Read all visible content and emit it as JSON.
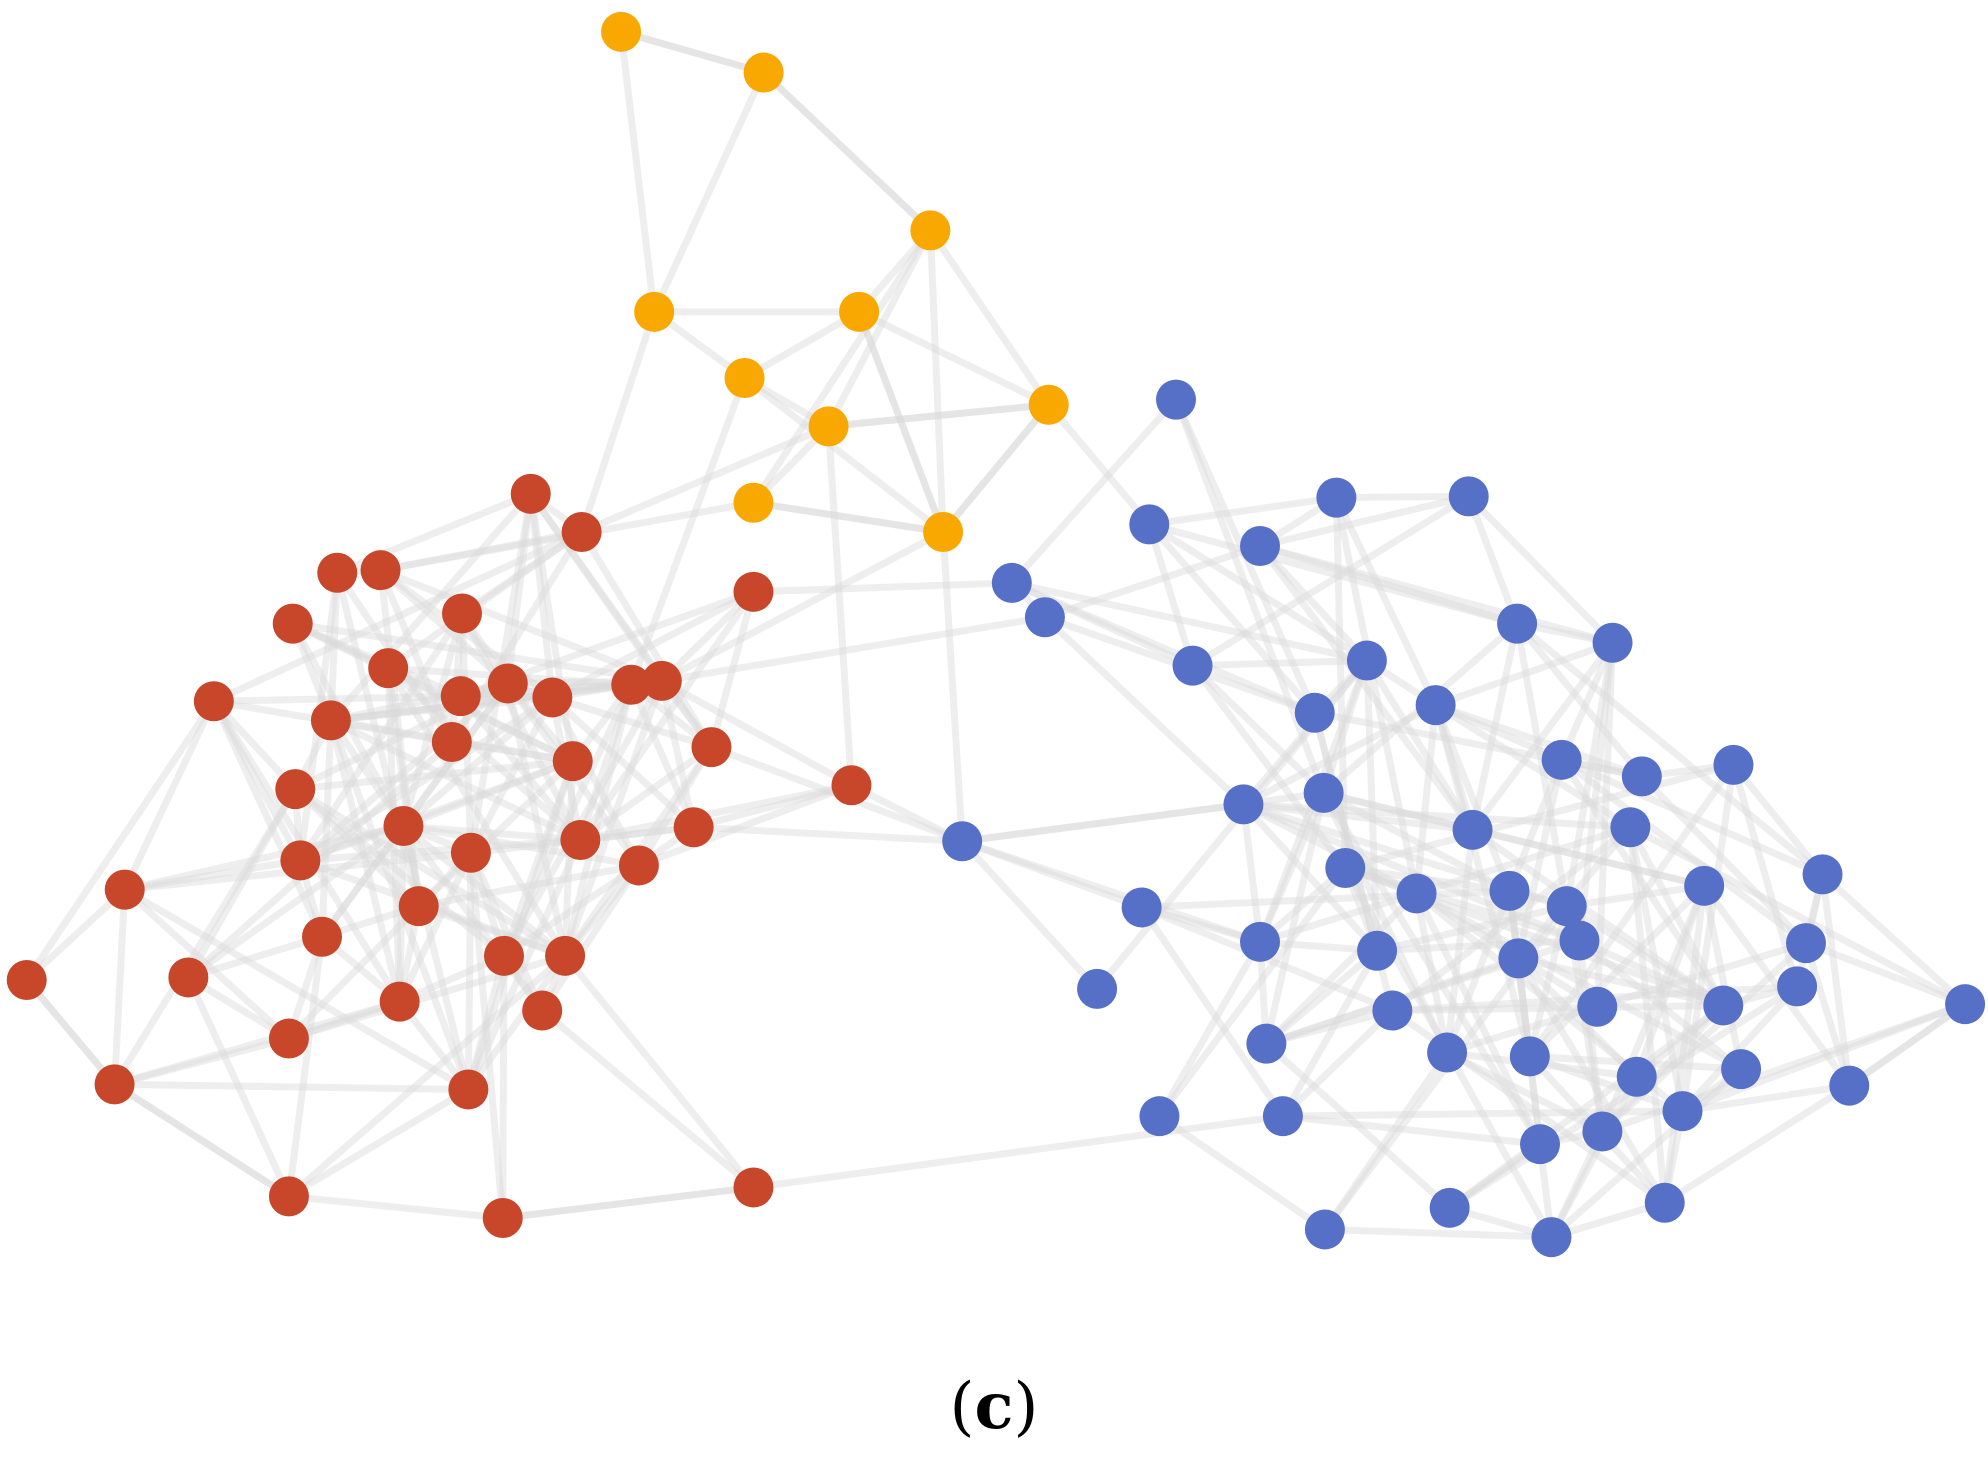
{
  "caption": {
    "open": "(",
    "letter": "c",
    "close": ")"
  },
  "colors": {
    "edge": "#d9d9d9",
    "community_orange": "#f8a800",
    "community_red": "#c8472a",
    "community_blue": "#5670c8"
  },
  "communities": [
    "orange",
    "red",
    "blue"
  ]
}
